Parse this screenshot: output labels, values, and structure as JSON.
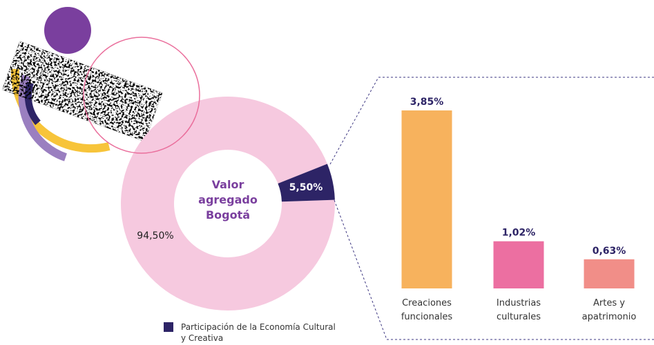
{
  "chart_data": [
    {
      "type": "donut",
      "center_label": "Valor agregado Bogotá",
      "categories": [
        null,
        "Participación de la Economía Cultural y Creativa"
      ],
      "values": [
        94.5,
        5.5
      ],
      "value_labels": [
        "94,50%",
        "5,50%"
      ],
      "colors": [
        "#f6c9df",
        "#2d2466"
      ]
    },
    {
      "type": "bar",
      "categories": [
        "Creaciones funcionales",
        "Industrias culturales",
        "Artes y apatrimonio"
      ],
      "values": [
        3.85,
        1.02,
        0.63
      ],
      "value_labels": [
        "3,85%",
        "1,02%",
        "0,63%"
      ],
      "colors": [
        "#f7b25d",
        "#ec6fa1",
        "#f18e88"
      ]
    }
  ]
}
